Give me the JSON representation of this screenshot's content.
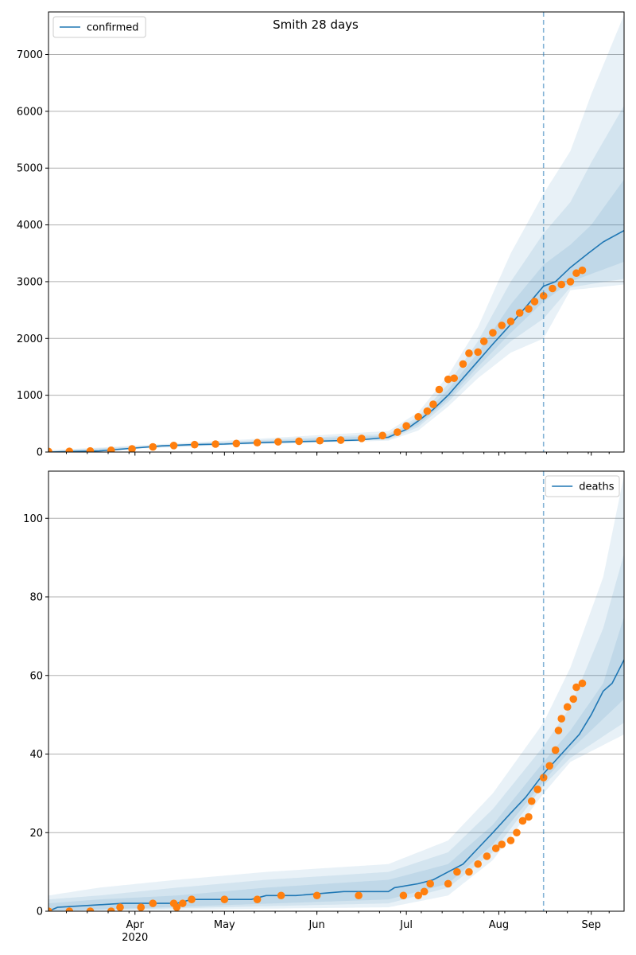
{
  "colors": {
    "model_line": "#1f77b4",
    "observed_points": "#ff7f0e",
    "band": "#1f77b4",
    "grid": "#b0b0b0",
    "cutoff_line": "#1f77b4"
  },
  "x_axis": {
    "start": "2020-03-03",
    "end": "2020-09-12",
    "month_ticks": [
      {
        "date": "2020-04-01",
        "label": "Apr"
      },
      {
        "date": "2020-05-01",
        "label": "May"
      },
      {
        "date": "2020-06-01",
        "label": "Jun"
      },
      {
        "date": "2020-07-01",
        "label": "Jul"
      },
      {
        "date": "2020-08-01",
        "label": "Aug"
      },
      {
        "date": "2020-09-01",
        "label": "Sep"
      }
    ],
    "year_label": "2020",
    "minor_ticks": "weekly"
  },
  "chart_data": [
    {
      "type": "line",
      "title": "Smith 28 days",
      "legend": {
        "label": "confirmed",
        "placement": "top-left"
      },
      "grid": "y-major",
      "ylim": [
        0,
        7750
      ],
      "yticks": [
        0,
        1000,
        2000,
        3000,
        4000,
        5000,
        6000,
        7000
      ],
      "cutoff_date": "2020-08-16",
      "model": [
        [
          "2020-03-03",
          0
        ],
        [
          "2020-03-20",
          20
        ],
        [
          "2020-04-01",
          70
        ],
        [
          "2020-04-10",
          110
        ],
        [
          "2020-04-20",
          130
        ],
        [
          "2020-05-01",
          140
        ],
        [
          "2020-05-15",
          170
        ],
        [
          "2020-06-01",
          190
        ],
        [
          "2020-06-15",
          210
        ],
        [
          "2020-06-25",
          260
        ],
        [
          "2020-07-01",
          400
        ],
        [
          "2020-07-05",
          550
        ],
        [
          "2020-07-10",
          750
        ],
        [
          "2020-07-15",
          1000
        ],
        [
          "2020-07-20",
          1300
        ],
        [
          "2020-07-25",
          1600
        ],
        [
          "2020-07-30",
          1900
        ],
        [
          "2020-08-05",
          2250
        ],
        [
          "2020-08-10",
          2550
        ],
        [
          "2020-08-16",
          2920
        ],
        [
          "2020-08-20",
          3000
        ],
        [
          "2020-08-25",
          3250
        ],
        [
          "2020-08-31",
          3500
        ],
        [
          "2020-09-05",
          3700
        ],
        [
          "2020-09-12",
          3900
        ]
      ],
      "bands": [
        {
          "opacity": 0.1,
          "lower": [
            [
              "2020-03-03",
              0
            ],
            [
              "2020-05-01",
              120
            ],
            [
              "2020-06-25",
              200
            ],
            [
              "2020-07-05",
              380
            ],
            [
              "2020-07-15",
              800
            ],
            [
              "2020-07-25",
              1300
            ],
            [
              "2020-08-05",
              1750
            ],
            [
              "2020-08-16",
              2000
            ],
            [
              "2020-08-25",
              2850
            ],
            [
              "2020-09-12",
              2950
            ]
          ],
          "upper": [
            [
              "2020-03-03",
              30
            ],
            [
              "2020-05-01",
              200
            ],
            [
              "2020-06-25",
              370
            ],
            [
              "2020-07-05",
              700
            ],
            [
              "2020-07-15",
              1350
            ],
            [
              "2020-07-25",
              2200
            ],
            [
              "2020-08-05",
              3500
            ],
            [
              "2020-08-16",
              4550
            ],
            [
              "2020-08-25",
              5300
            ],
            [
              "2020-09-01",
              6300
            ],
            [
              "2020-09-12",
              7700
            ]
          ]
        },
        {
          "opacity": 0.1,
          "lower": [
            [
              "2020-03-03",
              0
            ],
            [
              "2020-05-01",
              130
            ],
            [
              "2020-06-25",
              220
            ],
            [
              "2020-07-05",
              440
            ],
            [
              "2020-07-15",
              880
            ],
            [
              "2020-07-25",
              1420
            ],
            [
              "2020-08-05",
              1950
            ],
            [
              "2020-08-16",
              2350
            ],
            [
              "2020-08-25",
              2900
            ],
            [
              "2020-09-12",
              3050
            ]
          ],
          "upper": [
            [
              "2020-03-03",
              20
            ],
            [
              "2020-05-01",
              180
            ],
            [
              "2020-06-25",
              320
            ],
            [
              "2020-07-05",
              620
            ],
            [
              "2020-07-15",
              1200
            ],
            [
              "2020-07-25",
              1950
            ],
            [
              "2020-08-05",
              3000
            ],
            [
              "2020-08-16",
              3850
            ],
            [
              "2020-08-25",
              4400
            ],
            [
              "2020-09-01",
              5100
            ],
            [
              "2020-09-12",
              6100
            ]
          ]
        },
        {
          "opacity": 0.1,
          "lower": [
            [
              "2020-03-03",
              0
            ],
            [
              "2020-05-01",
              135
            ],
            [
              "2020-06-25",
              235
            ],
            [
              "2020-07-05",
              480
            ],
            [
              "2020-07-15",
              930
            ],
            [
              "2020-07-25",
              1500
            ],
            [
              "2020-08-05",
              2100
            ],
            [
              "2020-08-16",
              2650
            ],
            [
              "2020-08-25",
              3000
            ],
            [
              "2020-09-12",
              3350
            ]
          ],
          "upper": [
            [
              "2020-03-03",
              10
            ],
            [
              "2020-05-01",
              160
            ],
            [
              "2020-06-25",
              290
            ],
            [
              "2020-07-05",
              580
            ],
            [
              "2020-07-15",
              1100
            ],
            [
              "2020-07-25",
              1750
            ],
            [
              "2020-08-05",
              2600
            ],
            [
              "2020-08-16",
              3300
            ],
            [
              "2020-08-25",
              3650
            ],
            [
              "2020-09-01",
              4000
            ],
            [
              "2020-09-12",
              4800
            ]
          ]
        }
      ],
      "observed": [
        [
          "2020-03-03",
          10
        ],
        [
          "2020-03-10",
          12
        ],
        [
          "2020-03-17",
          18
        ],
        [
          "2020-03-24",
          30
        ],
        [
          "2020-03-31",
          55
        ],
        [
          "2020-04-07",
          90
        ],
        [
          "2020-04-14",
          115
        ],
        [
          "2020-04-21",
          130
        ],
        [
          "2020-04-28",
          140
        ],
        [
          "2020-05-05",
          150
        ],
        [
          "2020-05-12",
          165
        ],
        [
          "2020-05-19",
          180
        ],
        [
          "2020-05-26",
          190
        ],
        [
          "2020-06-02",
          200
        ],
        [
          "2020-06-09",
          210
        ],
        [
          "2020-06-16",
          240
        ],
        [
          "2020-06-23",
          290
        ],
        [
          "2020-06-28",
          350
        ],
        [
          "2020-07-01",
          460
        ],
        [
          "2020-07-05",
          620
        ],
        [
          "2020-07-08",
          720
        ],
        [
          "2020-07-10",
          840
        ],
        [
          "2020-07-12",
          1100
        ],
        [
          "2020-07-15",
          1280
        ],
        [
          "2020-07-17",
          1300
        ],
        [
          "2020-07-20",
          1550
        ],
        [
          "2020-07-22",
          1740
        ],
        [
          "2020-07-25",
          1760
        ],
        [
          "2020-07-27",
          1950
        ],
        [
          "2020-07-30",
          2100
        ],
        [
          "2020-08-02",
          2230
        ],
        [
          "2020-08-05",
          2300
        ],
        [
          "2020-08-08",
          2450
        ],
        [
          "2020-08-11",
          2520
        ],
        [
          "2020-08-13",
          2650
        ],
        [
          "2020-08-16",
          2750
        ],
        [
          "2020-08-19",
          2880
        ],
        [
          "2020-08-22",
          2950
        ],
        [
          "2020-08-25",
          3000
        ],
        [
          "2020-08-27",
          3150
        ],
        [
          "2020-08-29",
          3200
        ]
      ]
    },
    {
      "type": "line",
      "title": "",
      "legend": {
        "label": "deaths",
        "placement": "top-right"
      },
      "grid": "y-major",
      "ylim": [
        0,
        112
      ],
      "yticks": [
        0,
        20,
        40,
        60,
        80,
        100
      ],
      "cutoff_date": "2020-08-16",
      "model": [
        [
          "2020-03-03",
          0
        ],
        [
          "2020-03-06",
          1
        ],
        [
          "2020-03-28",
          2
        ],
        [
          "2020-04-15",
          2
        ],
        [
          "2020-04-20",
          3
        ],
        [
          "2020-05-10",
          3
        ],
        [
          "2020-05-15",
          4
        ],
        [
          "2020-05-25",
          4
        ],
        [
          "2020-06-10",
          5
        ],
        [
          "2020-06-25",
          5
        ],
        [
          "2020-06-27",
          6
        ],
        [
          "2020-07-05",
          7
        ],
        [
          "2020-07-10",
          8
        ],
        [
          "2020-07-15",
          10
        ],
        [
          "2020-07-20",
          12
        ],
        [
          "2020-07-25",
          16
        ],
        [
          "2020-07-30",
          20
        ],
        [
          "2020-08-05",
          25
        ],
        [
          "2020-08-10",
          29
        ],
        [
          "2020-08-16",
          35
        ],
        [
          "2020-08-22",
          40
        ],
        [
          "2020-08-28",
          45
        ],
        [
          "2020-09-01",
          50
        ],
        [
          "2020-09-05",
          56
        ],
        [
          "2020-09-08",
          58
        ],
        [
          "2020-09-12",
          64
        ]
      ],
      "bands": [
        {
          "opacity": 0.1,
          "lower": [
            [
              "2020-03-03",
              0
            ],
            [
              "2020-06-25",
              1
            ],
            [
              "2020-07-15",
              4
            ],
            [
              "2020-07-30",
              13
            ],
            [
              "2020-08-16",
              30
            ],
            [
              "2020-08-25",
              38
            ],
            [
              "2020-09-12",
              45
            ]
          ],
          "upper": [
            [
              "2020-03-03",
              4
            ],
            [
              "2020-03-20",
              6
            ],
            [
              "2020-04-15",
              8
            ],
            [
              "2020-05-15",
              10
            ],
            [
              "2020-06-25",
              12
            ],
            [
              "2020-07-15",
              18
            ],
            [
              "2020-07-30",
              30
            ],
            [
              "2020-08-16",
              48
            ],
            [
              "2020-08-25",
              62
            ],
            [
              "2020-09-05",
              85
            ],
            [
              "2020-09-12",
              111
            ]
          ]
        },
        {
          "opacity": 0.1,
          "lower": [
            [
              "2020-03-03",
              0
            ],
            [
              "2020-06-25",
              2
            ],
            [
              "2020-07-15",
              6
            ],
            [
              "2020-07-30",
              15
            ],
            [
              "2020-08-16",
              32
            ],
            [
              "2020-08-25",
              39
            ],
            [
              "2020-09-12",
              48
            ]
          ],
          "upper": [
            [
              "2020-03-03",
              3
            ],
            [
              "2020-03-20",
              4
            ],
            [
              "2020-04-15",
              6
            ],
            [
              "2020-05-15",
              8
            ],
            [
              "2020-06-25",
              10
            ],
            [
              "2020-07-15",
              15
            ],
            [
              "2020-07-30",
              26
            ],
            [
              "2020-08-16",
              42
            ],
            [
              "2020-08-25",
              52
            ],
            [
              "2020-09-05",
              72
            ],
            [
              "2020-09-12",
              91
            ]
          ]
        },
        {
          "opacity": 0.1,
          "lower": [
            [
              "2020-03-03",
              0
            ],
            [
              "2020-06-25",
              3
            ],
            [
              "2020-07-15",
              7
            ],
            [
              "2020-07-30",
              17
            ],
            [
              "2020-08-16",
              33
            ],
            [
              "2020-08-25",
              41
            ],
            [
              "2020-09-12",
              54
            ]
          ],
          "upper": [
            [
              "2020-03-03",
              2
            ],
            [
              "2020-03-20",
              3
            ],
            [
              "2020-04-15",
              4
            ],
            [
              "2020-05-15",
              6
            ],
            [
              "2020-06-25",
              8
            ],
            [
              "2020-07-15",
              12
            ],
            [
              "2020-07-30",
              22
            ],
            [
              "2020-08-16",
              38
            ],
            [
              "2020-08-25",
              46
            ],
            [
              "2020-09-05",
              58
            ],
            [
              "2020-09-12",
              75
            ]
          ]
        }
      ],
      "observed": [
        [
          "2020-03-03",
          0
        ],
        [
          "2020-03-10",
          0
        ],
        [
          "2020-03-17",
          0
        ],
        [
          "2020-03-24",
          0
        ],
        [
          "2020-03-27",
          1
        ],
        [
          "2020-04-03",
          1
        ],
        [
          "2020-04-07",
          2
        ],
        [
          "2020-04-14",
          2
        ],
        [
          "2020-04-15",
          1
        ],
        [
          "2020-04-17",
          2
        ],
        [
          "2020-04-20",
          3
        ],
        [
          "2020-05-01",
          3
        ],
        [
          "2020-05-12",
          3
        ],
        [
          "2020-05-20",
          4
        ],
        [
          "2020-06-01",
          4
        ],
        [
          "2020-06-15",
          4
        ],
        [
          "2020-06-30",
          4
        ],
        [
          "2020-07-05",
          4
        ],
        [
          "2020-07-07",
          5
        ],
        [
          "2020-07-09",
          7
        ],
        [
          "2020-07-15",
          7
        ],
        [
          "2020-07-18",
          10
        ],
        [
          "2020-07-22",
          10
        ],
        [
          "2020-07-25",
          12
        ],
        [
          "2020-07-28",
          14
        ],
        [
          "2020-07-31",
          16
        ],
        [
          "2020-08-02",
          17
        ],
        [
          "2020-08-05",
          18
        ],
        [
          "2020-08-07",
          20
        ],
        [
          "2020-08-09",
          23
        ],
        [
          "2020-08-11",
          24
        ],
        [
          "2020-08-12",
          28
        ],
        [
          "2020-08-14",
          31
        ],
        [
          "2020-08-16",
          34
        ],
        [
          "2020-08-18",
          37
        ],
        [
          "2020-08-20",
          41
        ],
        [
          "2020-08-21",
          46
        ],
        [
          "2020-08-22",
          49
        ],
        [
          "2020-08-24",
          52
        ],
        [
          "2020-08-26",
          54
        ],
        [
          "2020-08-27",
          57
        ],
        [
          "2020-08-29",
          58
        ]
      ]
    }
  ]
}
